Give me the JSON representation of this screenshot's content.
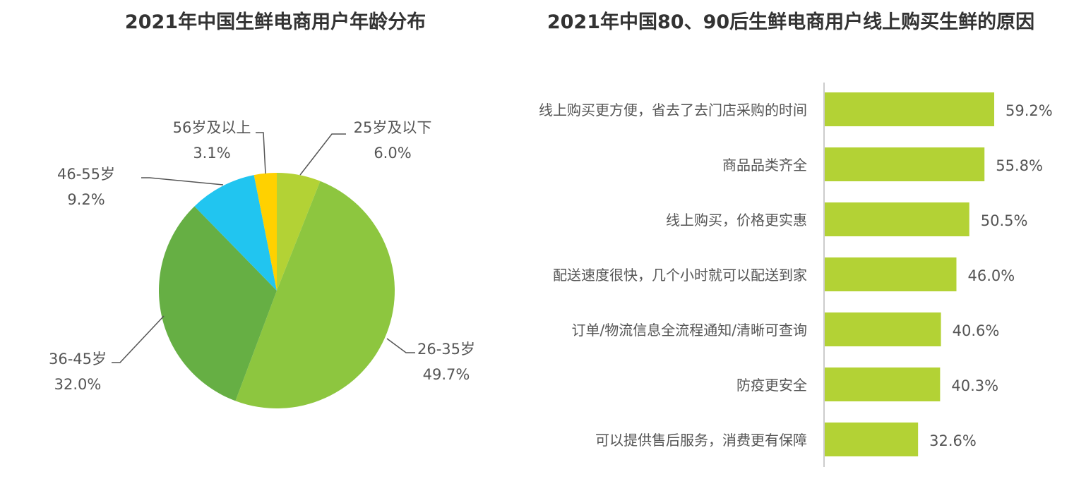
{
  "chart_data": [
    {
      "type": "pie",
      "title": "2021年中国生鲜电商用户年龄分布",
      "slices": [
        {
          "label": "25岁及以下",
          "value": 6.0,
          "display": "6.0%",
          "color": "#B3D235"
        },
        {
          "label": "26-35岁",
          "value": 49.7,
          "display": "49.7%",
          "color": "#8DC63F"
        },
        {
          "label": "36-45岁",
          "value": 32.0,
          "display": "32.0%",
          "color": "#66AF44"
        },
        {
          "label": "46-55岁",
          "value": 9.2,
          "display": "9.2%",
          "color": "#21C5F0"
        },
        {
          "label": "56岁及以上",
          "value": 3.1,
          "display": "3.1%",
          "color": "#FFD100"
        }
      ]
    },
    {
      "type": "bar",
      "orientation": "horizontal",
      "title": "2021年中国80、90后生鲜电商用户线上购买生鲜的原因",
      "color": "#B3D235",
      "categories": [
        "线上购买更方便，省去了去门店采购的时间",
        "商品品类齐全",
        "线上购买，价格更实惠",
        "配送速度很快，几个小时就可以配送到家",
        "订单/物流信息全流程通知/清晰可查询",
        "防疫更安全",
        "可以提供售后服务，消费更有保障"
      ],
      "values": [
        59.2,
        55.8,
        50.5,
        46.0,
        40.6,
        40.3,
        32.6
      ],
      "labels": [
        "59.2%",
        "55.8%",
        "50.5%",
        "46.0%",
        "40.6%",
        "40.3%",
        "32.6%"
      ]
    }
  ]
}
